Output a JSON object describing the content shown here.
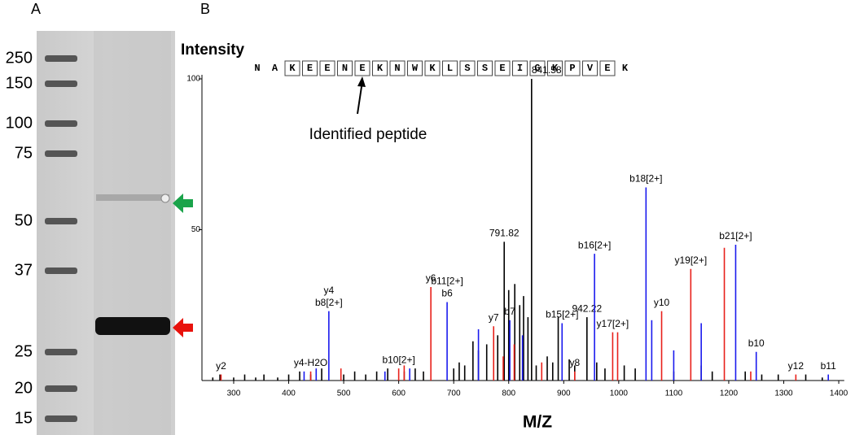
{
  "panels": {
    "a": "A",
    "b": "B"
  },
  "gel": {
    "markers": [
      "250",
      "150",
      "100",
      "75",
      "50",
      "37",
      "25",
      "20",
      "15"
    ]
  },
  "peptide": {
    "sequence": [
      "N",
      "A",
      "K",
      "E",
      "E",
      "N",
      "E",
      "K",
      "N",
      "W",
      "K",
      "L",
      "S",
      "S",
      "E",
      "I",
      "G",
      "K",
      "P",
      "V",
      "E",
      "K"
    ],
    "annotation": "Identified peptide"
  },
  "chart_data": {
    "type": "spectrum",
    "y_label": "Intensity",
    "x_label": "M/Z",
    "xlim": [
      250,
      1410
    ],
    "ylim": [
      0,
      100
    ],
    "xticks": [
      300,
      400,
      500,
      600,
      700,
      800,
      900,
      1000,
      1100,
      1200,
      1300,
      1400
    ],
    "yticks": [
      50,
      100
    ],
    "series": [
      {
        "color": "#000000",
        "x": [
          262,
          275,
          300,
          320,
          340,
          355,
          380,
          400,
          420,
          440,
          460,
          500,
          520,
          540,
          560,
          580,
          610,
          630,
          645,
          700,
          710,
          720,
          735,
          745,
          760,
          780,
          791.82,
          800,
          811,
          820,
          827,
          835,
          841.58,
          850,
          870,
          880,
          890,
          910,
          920,
          942.22,
          960,
          975,
          1010,
          1030,
          1100,
          1150,
          1170,
          1230,
          1260,
          1290,
          1340,
          1370
        ],
        "values": [
          1,
          2,
          1,
          2,
          1,
          2,
          1,
          2,
          3,
          2,
          4,
          2,
          3,
          2,
          3,
          4,
          3,
          4,
          3,
          4,
          6,
          5,
          13,
          10,
          12,
          15,
          46,
          30,
          32,
          25,
          28,
          21,
          100,
          5,
          8,
          6,
          21,
          7,
          5,
          21,
          6,
          4,
          5,
          4,
          3,
          5,
          3,
          3,
          2,
          2,
          2,
          1
        ],
        "labels": [
          null,
          null,
          null,
          null,
          null,
          null,
          null,
          null,
          null,
          null,
          null,
          null,
          null,
          null,
          null,
          null,
          null,
          null,
          null,
          null,
          null,
          null,
          null,
          null,
          null,
          null,
          "791.82",
          null,
          null,
          null,
          null,
          null,
          "841.58",
          null,
          null,
          null,
          null,
          null,
          null,
          "942.22",
          null,
          null,
          null,
          null,
          null,
          null,
          null,
          null,
          null,
          null,
          null,
          null
        ]
      },
      {
        "color": "#e8201a",
        "x": [
          277,
          440,
          495,
          600,
          610,
          658.5,
          772.6,
          790,
          810,
          860,
          920,
          989,
          998,
          1078,
          1131,
          1192,
          1240,
          1322
        ],
        "values": [
          2,
          3,
          4,
          4,
          5,
          31,
          18,
          8,
          12,
          6,
          3,
          16,
          16,
          23,
          37,
          44,
          3,
          2
        ],
        "labels": [
          "y2",
          "y4-H2O",
          null,
          "b10[2+]",
          null,
          "y6",
          "y7",
          null,
          null,
          null,
          "y8",
          "y17[2+]",
          null,
          "y10",
          "y19[2+]",
          null,
          null,
          "y12"
        ]
      },
      {
        "color": "#1a1aee",
        "x": [
          428,
          450,
          473,
          575,
          620,
          688,
          745,
          802,
          825,
          897,
          956,
          1049.6,
          1060,
          1100,
          1150,
          1212.6,
          1250,
          1381
        ],
        "values": [
          3,
          4,
          23,
          3,
          4,
          26,
          17,
          20,
          15,
          19,
          42,
          64,
          20,
          10,
          19,
          45,
          9.5,
          2
        ],
        "labels": [
          null,
          null,
          [
            "y4",
            "b8[2+]"
          ],
          null,
          null,
          [
            "b11[2+]",
            "b6"
          ],
          null,
          "b7",
          null,
          "b15[2+]",
          "b16[2+]",
          "b18[2+]",
          null,
          null,
          null,
          "b21[2+]",
          "b10",
          "b11"
        ]
      }
    ]
  }
}
